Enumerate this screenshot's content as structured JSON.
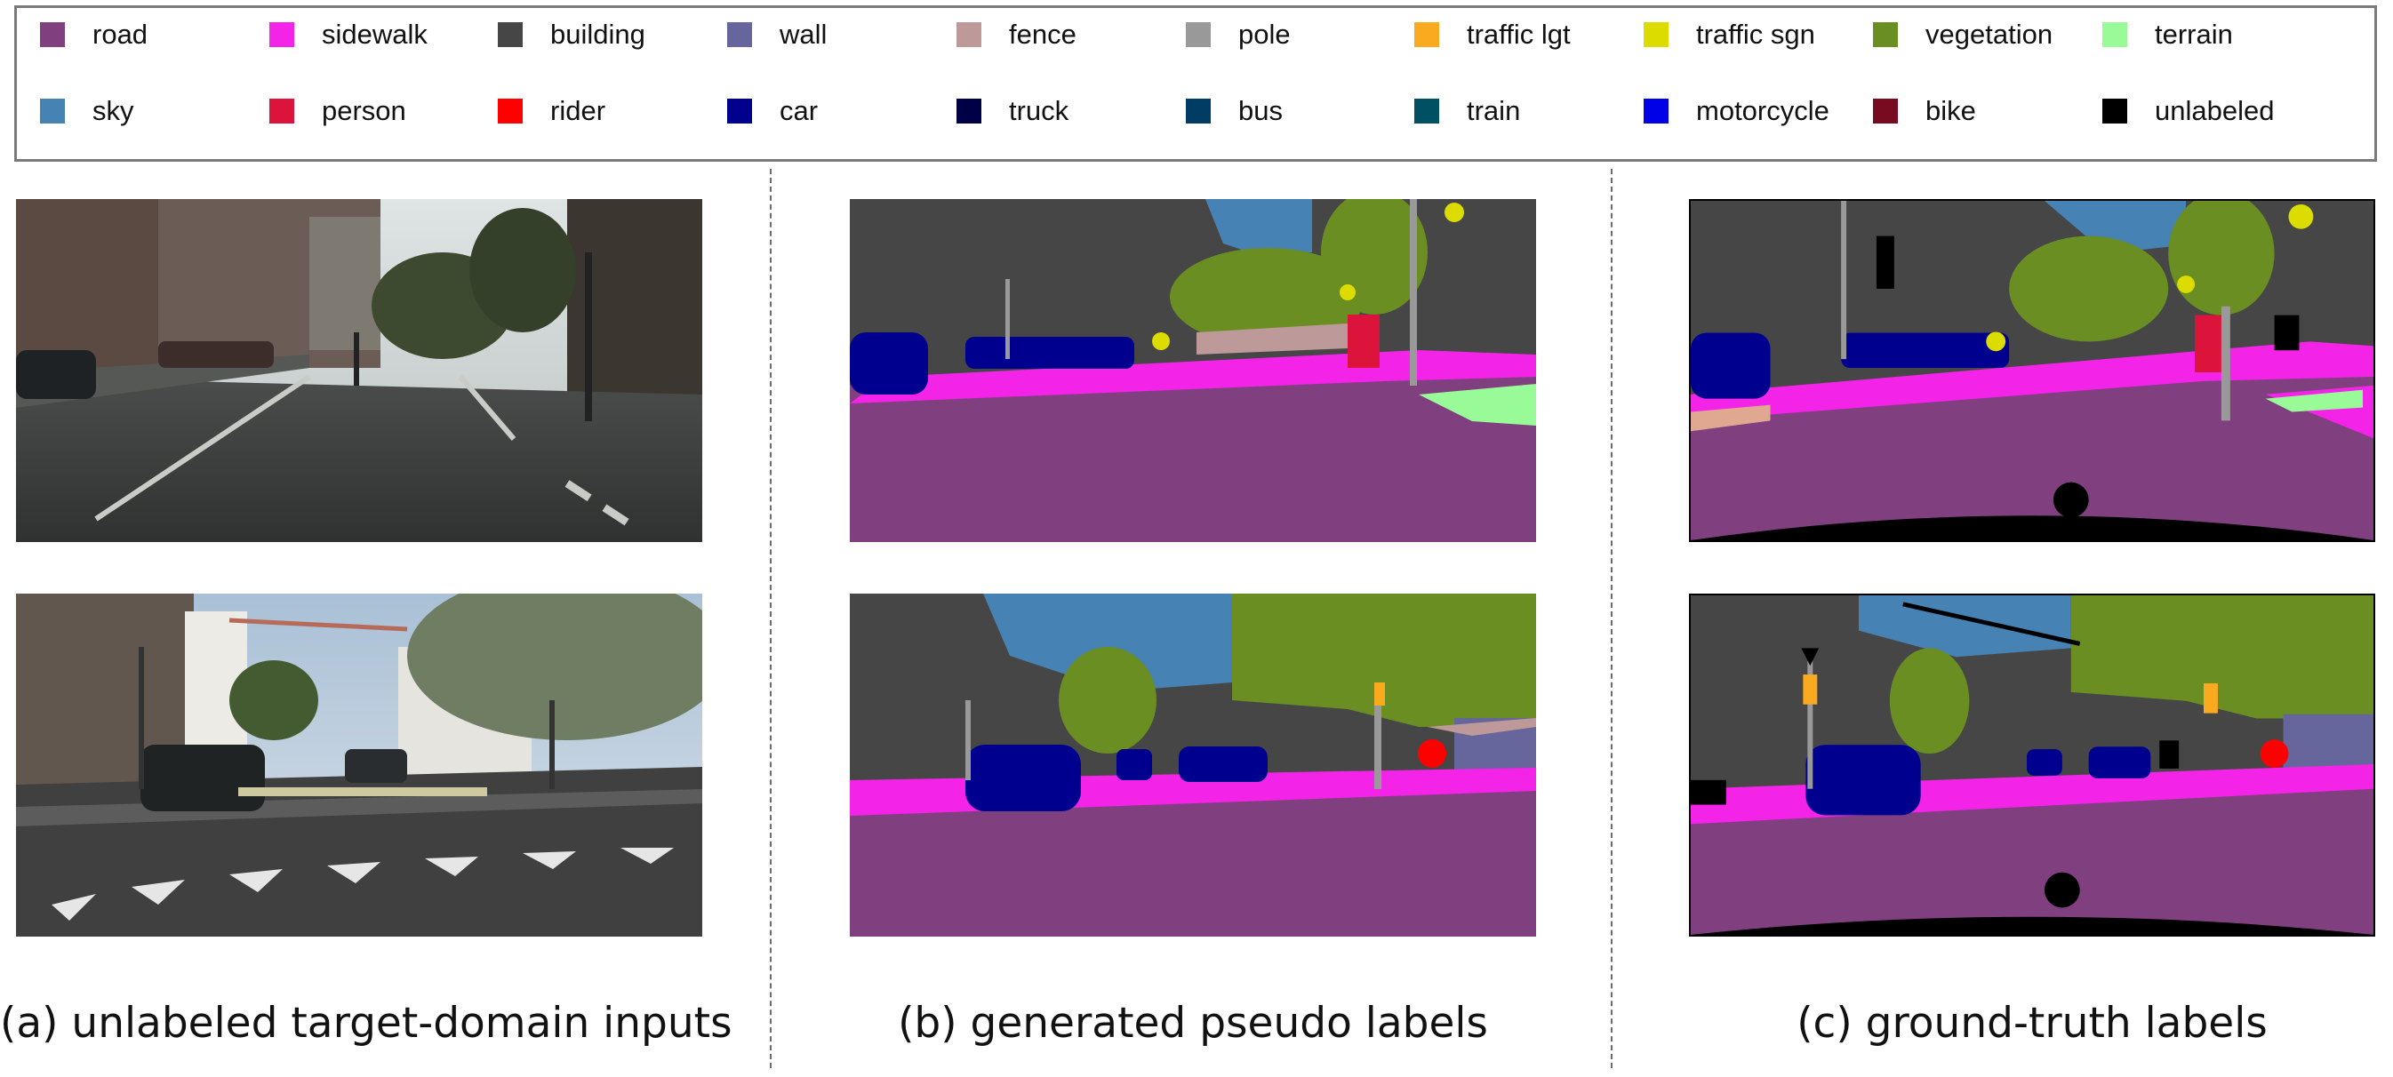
{
  "legend": {
    "items": [
      {
        "label": "road",
        "color": "#804080"
      },
      {
        "label": "sidewalk",
        "color": "#f423e8"
      },
      {
        "label": "building",
        "color": "#464646"
      },
      {
        "label": "wall",
        "color": "#66669c"
      },
      {
        "label": "fence",
        "color": "#be9999"
      },
      {
        "label": "pole",
        "color": "#999999"
      },
      {
        "label": "traffic lgt",
        "color": "#faaa1e"
      },
      {
        "label": "traffic sgn",
        "color": "#dcdc00"
      },
      {
        "label": "vegetation",
        "color": "#6b8e23"
      },
      {
        "label": "terrain",
        "color": "#98fb98"
      },
      {
        "label": "sky",
        "color": "#4682b4"
      },
      {
        "label": "person",
        "color": "#dc143c"
      },
      {
        "label": "rider",
        "color": "#ff0000"
      },
      {
        "label": "car",
        "color": "#00008e"
      },
      {
        "label": "truck",
        "color": "#000046"
      },
      {
        "label": "bus",
        "color": "#003c64"
      },
      {
        "label": "train",
        "color": "#005064"
      },
      {
        "label": "motorcycle",
        "color": "#0000e6"
      },
      {
        "label": "bike",
        "color": "#770b20"
      },
      {
        "label": "unlabeled",
        "color": "#000000"
      }
    ]
  },
  "columns": [
    {
      "caption": "(a) unlabeled target-domain inputs"
    },
    {
      "caption": "(b) generated pseudo labels"
    },
    {
      "caption": "(c) ground-truth labels"
    }
  ]
}
